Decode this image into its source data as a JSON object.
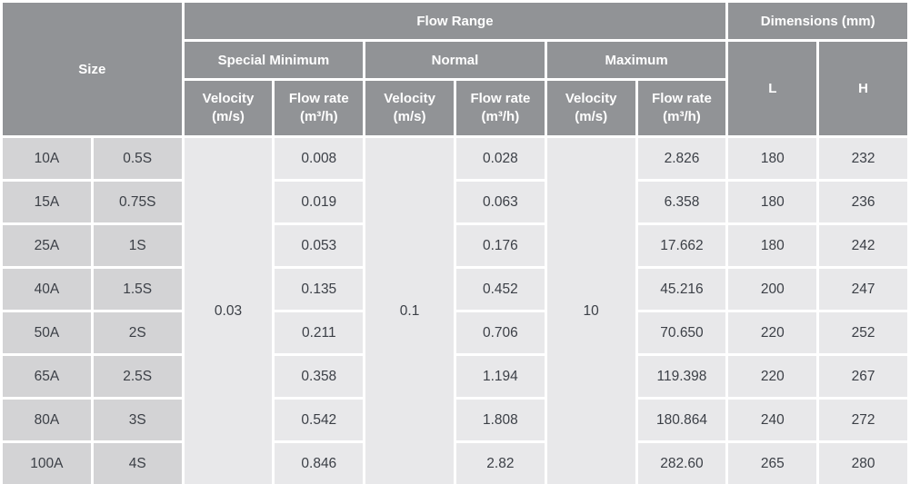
{
  "colors": {
    "header_bg": "#919396",
    "header_text": "#ffffff",
    "size_cell_bg": "#d3d3d5",
    "data_cell_bg": "#e8e8ea",
    "data_text": "#3b3f46",
    "gap": "#ffffff"
  },
  "table": {
    "header": {
      "size": "Size",
      "flow_range": "Flow Range",
      "dimensions": "Dimensions (mm)",
      "special_minimum": "Special Minimum",
      "normal": "Normal",
      "maximum": "Maximum",
      "velocity": "Velocity\n(m/s)",
      "flow_rate": "Flow rate\n(m³/h)",
      "l": "L",
      "h": "H"
    },
    "merged_velocity": {
      "special_minimum": "0.03",
      "normal": "0.1",
      "maximum": "10"
    },
    "rows": [
      {
        "size_a": "10A",
        "size_s": "0.5S",
        "sm_flow": "0.008",
        "n_flow": "0.028",
        "m_flow": "2.826",
        "l": "180",
        "h": "232"
      },
      {
        "size_a": "15A",
        "size_s": "0.75S",
        "sm_flow": "0.019",
        "n_flow": "0.063",
        "m_flow": "6.358",
        "l": "180",
        "h": "236"
      },
      {
        "size_a": "25A",
        "size_s": "1S",
        "sm_flow": "0.053",
        "n_flow": "0.176",
        "m_flow": "17.662",
        "l": "180",
        "h": "242"
      },
      {
        "size_a": "40A",
        "size_s": "1.5S",
        "sm_flow": "0.135",
        "n_flow": "0.452",
        "m_flow": "45.216",
        "l": "200",
        "h": "247"
      },
      {
        "size_a": "50A",
        "size_s": "2S",
        "sm_flow": "0.211",
        "n_flow": "0.706",
        "m_flow": "70.650",
        "l": "220",
        "h": "252"
      },
      {
        "size_a": "65A",
        "size_s": "2.5S",
        "sm_flow": "0.358",
        "n_flow": "1.194",
        "m_flow": "119.398",
        "l": "220",
        "h": "267"
      },
      {
        "size_a": "80A",
        "size_s": "3S",
        "sm_flow": "0.542",
        "n_flow": "1.808",
        "m_flow": "180.864",
        "l": "240",
        "h": "272"
      },
      {
        "size_a": "100A",
        "size_s": "4S",
        "sm_flow": "0.846",
        "n_flow": "2.82",
        "m_flow": "282.60",
        "l": "265",
        "h": "280"
      }
    ]
  }
}
